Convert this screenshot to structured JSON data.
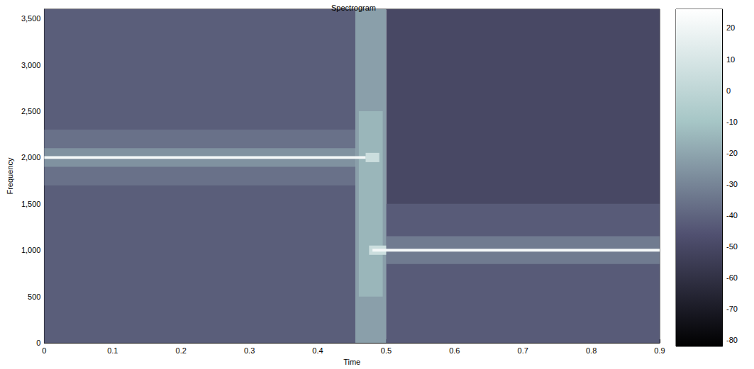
{
  "chart_data": {
    "type": "heatmap",
    "title": "Spectrogram",
    "x_label": "Time",
    "y_label": "Frequency",
    "xlim": [
      0,
      0.9
    ],
    "xticks": [
      0,
      0.1,
      0.2,
      0.3,
      0.4,
      0.5,
      0.6,
      0.7,
      0.8,
      0.9
    ],
    "ylim": [
      0,
      3600
    ],
    "yticks": [
      0,
      500,
      1000,
      1500,
      2000,
      2500,
      3000,
      3500
    ],
    "cells": [
      [
        0,
        0.455,
        0,
        3600,
        -42
      ],
      [
        0,
        0.455,
        1700,
        2300,
        -36
      ],
      [
        0,
        0.455,
        1900,
        2100,
        -26
      ],
      [
        0.5,
        0.9,
        0,
        3600,
        -50
      ],
      [
        0.5,
        0.9,
        0,
        1500,
        -43
      ],
      [
        0.5,
        0.9,
        850,
        1150,
        -33
      ],
      [
        0.455,
        0.5,
        0,
        3600,
        -22
      ],
      [
        0.46,
        0.495,
        500,
        2500,
        -15
      ],
      [
        0.47,
        0.49,
        1950,
        2050,
        5
      ],
      [
        0.475,
        0.5,
        950,
        1050,
        5
      ],
      [
        0,
        0.47,
        1985,
        2015,
        22
      ],
      [
        0.48,
        0.9,
        985,
        1015,
        22
      ]
    ],
    "colorbar_lim": [
      -82,
      26
    ],
    "colorbar_ticks": [
      -80,
      -70,
      -60,
      -50,
      -40,
      -30,
      -20,
      -10,
      0,
      10,
      20
    ],
    "grid": false
  }
}
